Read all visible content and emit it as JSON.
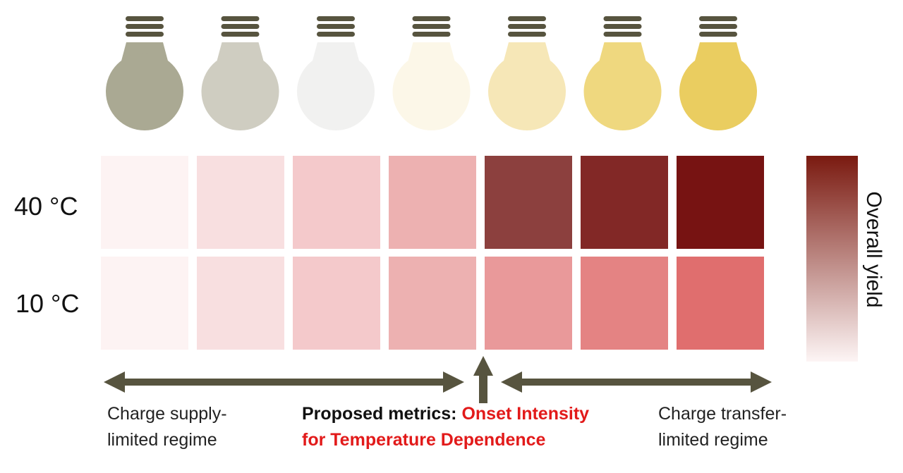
{
  "bulbs": {
    "colors": [
      "#aaa993",
      "#cfcdc1",
      "#f1f1f0",
      "#fcf7e8",
      "#f6e7b7",
      "#efd87f",
      "#eacd60"
    ],
    "socket_color": "#57543f",
    "icon": "light-bulb-icon"
  },
  "heatmap": {
    "rows": [
      {
        "label": "40 °C",
        "colors": [
          "#fdf3f3",
          "#f8dfe0",
          "#f4c9cb",
          "#edb1b1",
          "#8c403e",
          "#822826",
          "#771312"
        ]
      },
      {
        "label": "10 °C",
        "colors": [
          "#fdf3f3",
          "#f8dfe0",
          "#f4c9cb",
          "#edb1b1",
          "#e9999a",
          "#e48383",
          "#e06e6e"
        ]
      }
    ]
  },
  "colorbar": {
    "label": "Overall yield",
    "color_high": "#7a1a10",
    "color_low": "#fdf5f5"
  },
  "arrows": {
    "color": "#57543f"
  },
  "annotations": {
    "left_regime": [
      "Charge supply-",
      "limited regime"
    ],
    "right_regime": [
      "Charge transfer-",
      "limited regime"
    ],
    "metric_prefix": "Proposed metrics: ",
    "metric_highlight_1": "Onset Intensity",
    "metric_highlight_2": "for Temperature Dependence"
  }
}
